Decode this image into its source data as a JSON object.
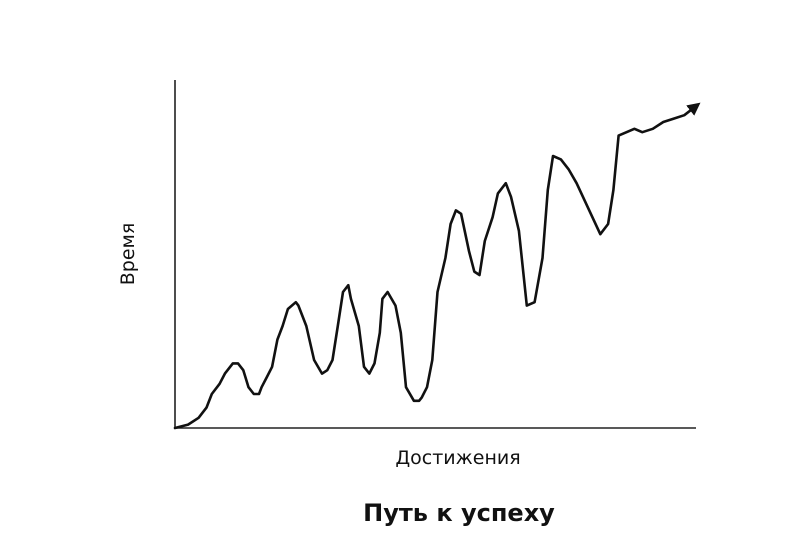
{
  "chart_data": {
    "type": "line",
    "title": "Путь к успеху",
    "xlabel": "Достижения",
    "ylabel": "Время",
    "xlim": [
      0,
      100
    ],
    "ylim": [
      0,
      100
    ],
    "grid": false,
    "legend": "none",
    "arrow_at_end": true,
    "series": [
      {
        "color": "#111111",
        "x": [
          0,
          2.5,
          4.5,
          6,
          7,
          8.5,
          9.5,
          11,
          12,
          13,
          14,
          15,
          16,
          16.5,
          17.5,
          18.5,
          19.5,
          20.5,
          21.5,
          23,
          23.5,
          25,
          26.5,
          28,
          29,
          30,
          31,
          32,
          33,
          33.5,
          35,
          36,
          37,
          38,
          39,
          39.5,
          40.5,
          42,
          43,
          44,
          45.5,
          46.5,
          47,
          48,
          49,
          50,
          51.5,
          52.5,
          53.5,
          54.5,
          56,
          57,
          58,
          59,
          60.5,
          61.5,
          63,
          64,
          65.5,
          67,
          68.5,
          70,
          71,
          72,
          73.5,
          75,
          76.5,
          78,
          79.5,
          81,
          82.5,
          83.5,
          84.5,
          86,
          87.5,
          89,
          91,
          93,
          95,
          97,
          99.5
        ],
        "y": [
          0,
          1,
          3,
          6,
          10,
          13,
          16,
          19,
          19,
          17,
          12,
          10,
          10,
          12,
          15,
          18,
          26,
          30,
          35,
          37,
          36,
          30,
          20,
          16,
          17,
          20,
          30,
          40,
          42,
          38,
          30,
          18,
          16,
          19,
          28,
          38,
          40,
          36,
          28,
          12,
          8,
          8,
          9,
          12,
          20,
          40,
          50,
          60,
          64,
          63,
          52,
          46,
          45,
          55,
          62,
          69,
          72,
          68,
          58,
          36,
          37,
          50,
          70,
          80,
          79,
          76,
          72,
          67,
          62,
          57,
          60,
          70,
          86,
          87,
          88,
          87,
          88,
          90,
          91,
          92,
          95
        ]
      }
    ]
  }
}
